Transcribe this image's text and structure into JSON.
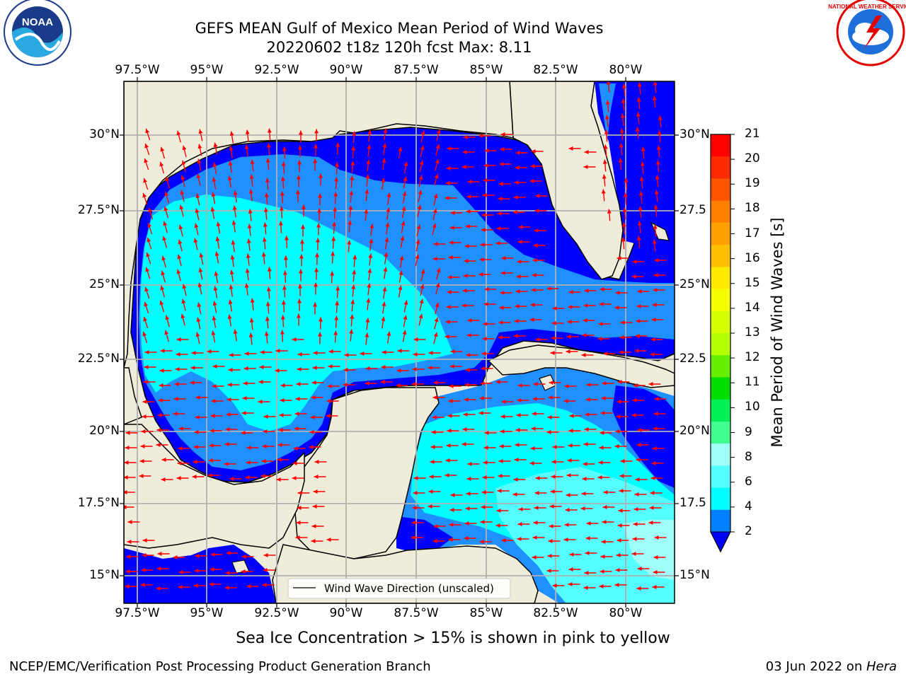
{
  "title": "GEFS MEAN Gulf of Mexico Mean Period of Wind Waves",
  "subtitle": "20220602 t18z 120h fcst   Max: 8.11",
  "lon_labels": [
    "97.5°W",
    "95°W",
    "92.5°W",
    "90°W",
    "87.5°W",
    "85°W",
    "82.5°W",
    "80°W"
  ],
  "lat_labels_left": [
    "30°N",
    "27.5°N",
    "25°N",
    "22.5°N",
    "20°N",
    "17.5°N",
    "15°N"
  ],
  "lat_labels_right": [
    "30°N",
    "27.5",
    "25°N",
    "22.5",
    "20°N",
    "17.5",
    "15°N"
  ],
  "legend_label": "Wind Wave Direction (unscaled)",
  "colorbar": {
    "title": "Mean Period of Wind Waves [s]",
    "ticks": [
      "21",
      "20",
      "19",
      "18",
      "17",
      "16",
      "15",
      "14",
      "13",
      "12",
      "11",
      "10",
      "9",
      "8",
      "6",
      "4",
      "2"
    ],
    "colors": [
      "#ff0000",
      "#ff2a00",
      "#ff5500",
      "#ff7f00",
      "#ff9f00",
      "#ffbf00",
      "#ffea00",
      "#f5ff00",
      "#d8ff00",
      "#b4ff00",
      "#66ee00",
      "#00dd00",
      "#00ee55",
      "#40ff90",
      "#a0fff8",
      "#55ffff",
      "#00ffff",
      "#0080ff",
      "#0000ff"
    ]
  },
  "caption": "Sea Ice Concentration > 15% is shown in pink to yellow",
  "footer_left": "NCEP/EMC/Verification Post Processing Product Generation Branch",
  "footer_date": "03 Jun 2022 on ",
  "footer_machine": "Hera",
  "colors": {
    "land": "#efedda",
    "period_2_4": "#0000ff",
    "period_4_6": "#1e90ff",
    "period_6_8": "#00ffff",
    "period_8_9": "#55ffff",
    "arrows": "#ff0000",
    "grid": "#b0b0b0"
  },
  "icons": [
    "noaa-logo-icon",
    "nws-logo-icon"
  ]
}
